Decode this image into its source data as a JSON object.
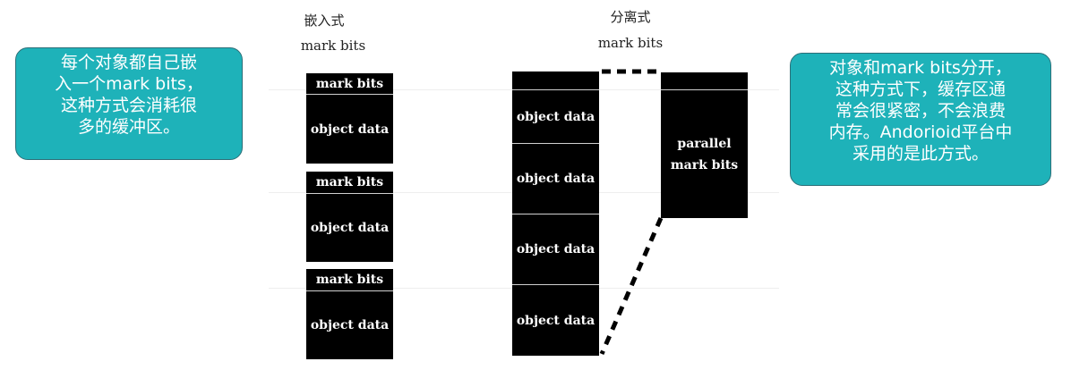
{
  "left_note": "每个对象都自己嵌\n入一个mark bits，\n这种方式会消耗很\n多的缓冲区。",
  "right_note": "对象和mark bits分开，\n这种方式下，缓存区通\n常会很紧密，不会浪费\n内存。Andorioid平台中\n采用的是此方式。",
  "embedded": {
    "title": "嵌入式",
    "subtitle": "mark bits",
    "groups": [
      {
        "bits": "mark bits",
        "data": "object data"
      },
      {
        "bits": "mark bits",
        "data": "object data"
      },
      {
        "bits": "mark bits",
        "data": "object data"
      }
    ]
  },
  "separate": {
    "title": "分离式",
    "subtitle": "mark bits",
    "objects": [
      "object data",
      "object data",
      "object data",
      "object data"
    ],
    "parallel": "parallel\nmark bits"
  },
  "colors": {
    "callout_fill": "#1eb2b9",
    "block": "#000000"
  }
}
